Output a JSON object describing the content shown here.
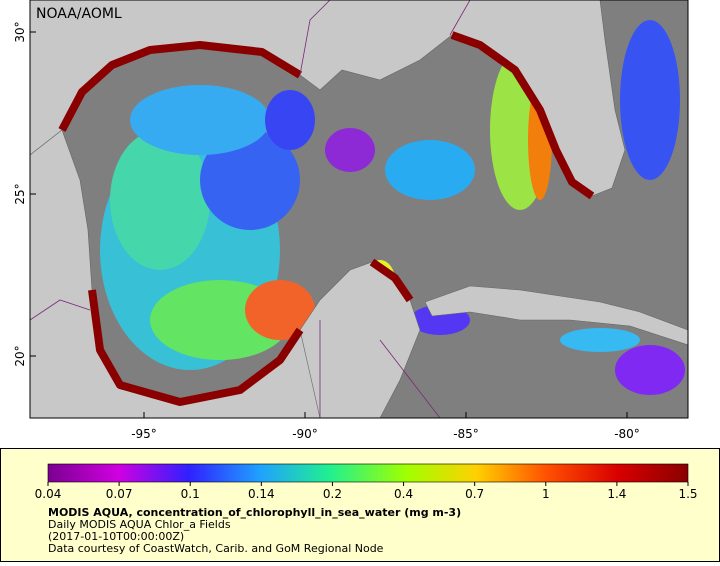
{
  "map": {
    "credit": "NOAA/AOML",
    "lat_labels": [
      "30°",
      "25°",
      "20°"
    ],
    "lon_labels": [
      "-95°",
      "-90°",
      "-85°",
      "-80°"
    ]
  },
  "legend": {
    "ticks": [
      "0.04",
      "0.07",
      "0.1",
      "0.14",
      "0.2",
      "0.4",
      "0.7",
      "1",
      "1.4",
      "1.5"
    ],
    "title": "MODIS AQUA, concentration_of_chlorophyll_in_sea_water (mg m-3)",
    "lines": [
      "Daily MODIS AQUA Chlor_a Fields",
      "(2017-01-10T00:00:00Z)",
      "Data courtesy of CoastWatch, Carib. and GoM Regional Node"
    ]
  }
}
